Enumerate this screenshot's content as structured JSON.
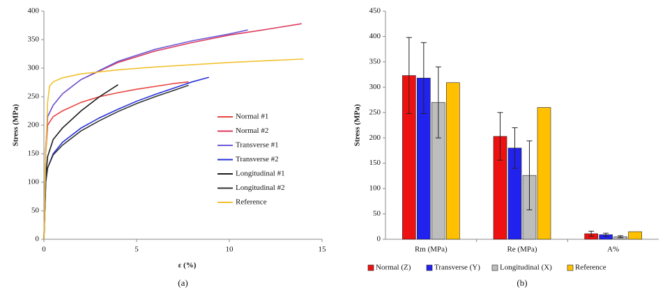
{
  "chart_data": [
    {
      "type": "line",
      "caption": "(a)",
      "xlabel": "ε (%)",
      "ylabel": "Stress (MPa)",
      "xlim": [
        0,
        15
      ],
      "xticks": [
        0,
        5,
        10,
        15
      ],
      "ylim": [
        0,
        400
      ],
      "yticks": [
        0,
        50,
        100,
        150,
        200,
        250,
        300,
        350,
        400
      ],
      "grid": false,
      "legend_position": "right",
      "series": [
        {
          "name": "Normal #1",
          "color": "#e8413c",
          "x": [
            0,
            0.1,
            0.2,
            0.5,
            1,
            2,
            3,
            4,
            5,
            6,
            7,
            7.8
          ],
          "values": [
            0,
            150,
            200,
            215,
            225,
            240,
            250,
            257,
            263,
            268,
            273,
            276
          ]
        },
        {
          "name": "Normal #2",
          "color": "#dc3a5e",
          "x": [
            0,
            0.1,
            0.2,
            0.5,
            1,
            2,
            4,
            6,
            8,
            10,
            12,
            13.9
          ],
          "values": [
            0,
            160,
            215,
            235,
            255,
            280,
            310,
            330,
            345,
            358,
            368,
            378
          ]
        },
        {
          "name": "Transverse #1",
          "color": "#6a5ad8",
          "x": [
            0,
            0.1,
            0.2,
            0.5,
            1,
            2,
            4,
            6,
            8,
            10,
            11
          ],
          "values": [
            0,
            160,
            215,
            235,
            255,
            280,
            312,
            333,
            348,
            360,
            367
          ]
        },
        {
          "name": "Transverse #2",
          "color": "#2430d8",
          "x": [
            0,
            0.1,
            0.2,
            0.5,
            1,
            2,
            3,
            4,
            5,
            6,
            7,
            8,
            8.9
          ],
          "values": [
            0,
            100,
            125,
            150,
            170,
            195,
            213,
            228,
            242,
            254,
            265,
            276,
            284
          ]
        },
        {
          "name": "Longitudinal #1",
          "color": "#1a1a1a",
          "x": [
            0,
            0.1,
            0.2,
            0.5,
            1,
            2,
            3,
            4
          ],
          "values": [
            0,
            110,
            145,
            175,
            195,
            225,
            250,
            271
          ]
        },
        {
          "name": "Longitudinal #2",
          "color": "#333333",
          "x": [
            0,
            0.1,
            0.2,
            0.5,
            1,
            2,
            3,
            4,
            5,
            6,
            7,
            7.8
          ],
          "values": [
            0,
            100,
            125,
            148,
            165,
            190,
            208,
            224,
            238,
            250,
            261,
            270
          ]
        },
        {
          "name": "Reference",
          "color": "#f2c12e",
          "x": [
            0,
            0.1,
            0.2,
            0.3,
            0.5,
            1,
            2,
            4,
            6,
            8,
            10,
            12,
            14
          ],
          "values": [
            0,
            150,
            240,
            268,
            276,
            283,
            290,
            297,
            302,
            306,
            310,
            313,
            316
          ]
        }
      ]
    },
    {
      "type": "bar",
      "caption": "(b)",
      "ylabel": "Stress (MPa)",
      "categories": [
        "Rm (MPa)",
        "Re (MPa)",
        "A%"
      ],
      "ylim": [
        0,
        450
      ],
      "yticks": [
        0,
        50,
        100,
        150,
        200,
        250,
        300,
        350,
        400,
        450
      ],
      "grid": false,
      "legend_position": "bottom",
      "series": [
        {
          "name": "Normal (Z)",
          "color": "#ee1111",
          "values": [
            323,
            203,
            11
          ],
          "errors": [
            75,
            47,
            5
          ]
        },
        {
          "name": "Transverse (Y)",
          "color": "#2222ee",
          "values": [
            318,
            180,
            9
          ],
          "errors": [
            70,
            40,
            3
          ]
        },
        {
          "name": "Longitudinal (X)",
          "color": "#bdbdbd",
          "values": [
            270,
            126,
            5
          ],
          "errors": [
            70,
            68,
            2
          ]
        },
        {
          "name": "Reference",
          "color": "#ffc000",
          "values": [
            309,
            260,
            15
          ]
        }
      ]
    }
  ]
}
